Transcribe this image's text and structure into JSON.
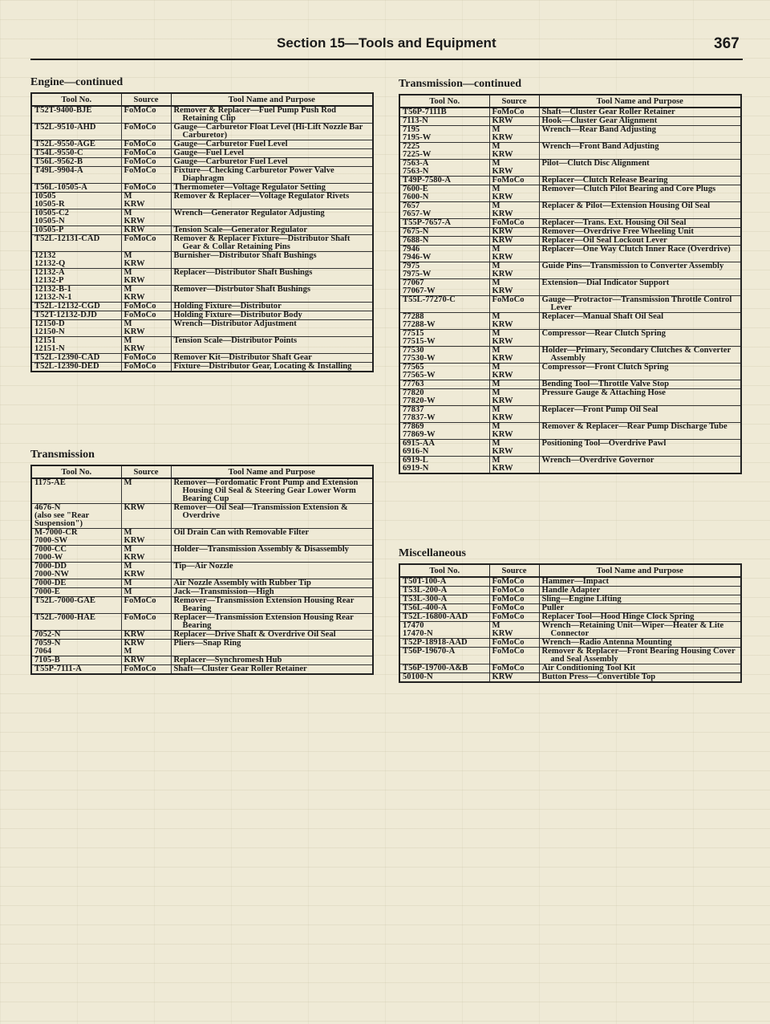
{
  "header": {
    "title": "Section 15—Tools and Equipment",
    "page": "367"
  },
  "columns": {
    "tool": "Tool No.",
    "source": "Source",
    "purpose": "Tool Name and Purpose"
  },
  "sections": [
    {
      "title": "Engine—continued",
      "rows": [
        [
          "T52T-9400-BJE",
          "FoMoCo",
          "Remover & Replacer—Fuel Pump Push Rod Retaining Clip"
        ],
        [
          "T52L-9510-AHD",
          "FoMoCo",
          "Gauge—Carburetor Float Level (Hi-Lift Nozzle Bar Carburetor)"
        ],
        [
          "T52L-9550-AGE",
          "FoMoCo",
          "Gauge—Carburetor Fuel Level"
        ],
        [
          "T54L-9550-C",
          "FoMoCo",
          "Gauge—Fuel Level"
        ],
        [
          "T56L-9562-B",
          "FoMoCo",
          "Gauge—Carburetor Fuel Level"
        ],
        [
          "T49L-9904-A",
          "FoMoCo",
          "Fixture—Checking Carburetor Power Valve Diaphragm"
        ],
        [
          "T56L-10505-A",
          "FoMoCo",
          "Thermometer—Voltage Regulator Setting"
        ],
        [
          "10505\n10505-R",
          "M\nKRW",
          "Remover & Replacer—Voltage Regulator Rivets"
        ],
        [
          "10505-C2\n10505-N",
          "M\nKRW",
          "Wrench—Generator Regulator Adjusting"
        ],
        [
          "10505-P",
          "KRW",
          "Tension Scale—Generator Regulator"
        ],
        [
          "T52L-12131-CAD",
          "FoMoCo",
          "Remover & Replacer Fixture—Distributor Shaft Gear & Collar Retaining Pins"
        ],
        [
          "12132\n12132-Q",
          "M\nKRW",
          "Burnisher—Distributor Shaft Bushings"
        ],
        [
          "12132-A\n12132-P",
          "M\nKRW",
          "Replacer—Distributor Shaft Bushings"
        ],
        [
          "12132-B-1\n12132-N-1",
          "M\nKRW",
          "Remover—Distrbutor Shaft Bushings"
        ],
        [
          "T52L-12132-CGD",
          "FoMoCo",
          "Holding Fixture—Distributor"
        ],
        [
          "T52T-12132-DJD",
          "FoMoCo",
          "Holding Fixture—Distributor Body"
        ],
        [
          "12150-D\n12150-N",
          "M\nKRW",
          "Wrench—Distributor Adjustment"
        ],
        [
          "12151\n12151-N",
          "M\nKRW",
          "Tension Scale—Distributor Points"
        ],
        [
          "T52L-12390-CAD",
          "FoMoCo",
          "Remover Kit—Distributor Shaft Gear"
        ],
        [
          "T52L-12390-DED",
          "FoMoCo",
          "Fixture—Distributor Gear, Locating & Installing"
        ]
      ]
    },
    {
      "title": "Transmission",
      "rows": [
        [
          "1175-AE",
          "M",
          "Remover—Fordomatic Front Pump and Extension Housing Oil Seal & Steering Gear Lower Worm Bearing Cup"
        ],
        [
          "4676-N\n(also see \"Rear Suspension\")",
          "KRW",
          "Remover—Oil Seal—Transmission Extension & Overdrive"
        ],
        [
          "M-7000-CR\n7000-SW",
          "M\nKRW",
          "Oil Drain Can with Removable Filter"
        ],
        [
          "7000-CC\n7000-W",
          "M\nKRW",
          "Holder—Transmission Assembly & Disassembly"
        ],
        [
          "7000-DD\n7000-NW",
          "M\nKRW",
          "Tip—Air Nozzle"
        ],
        [
          "7000-DE",
          "M",
          "Air Nozzle Assembly with Rubber Tip"
        ],
        [
          "7000-E",
          "M",
          "Jack—Transmission—High"
        ],
        [
          "T52L-7000-GAE",
          "FoMoCo",
          "Remover—Transmission Extension Housing Rear Bearing"
        ],
        [
          "T52L-7000-HAE",
          "FoMoCo",
          "Replacer—Transmission Extension Housing Rear Bearing"
        ],
        [
          "7052-N",
          "KRW",
          "Replacer—Drive Shaft & Overdrive Oil Seal"
        ],
        [
          "7059-N\n7064",
          "KRW\nM",
          "Pliers—Snap Ring"
        ],
        [
          "7105-B",
          "KRW",
          "Replacer—Synchromesh Hub"
        ],
        [
          "T55P-7111-A",
          "FoMoCo",
          "Shaft—Cluster Gear Roller Retainer"
        ]
      ]
    },
    {
      "title": "Transmission—continued",
      "rows": [
        [
          "T56P-7111B",
          "FoMoCo",
          "Shaft—Cluster Gear Roller Retainer"
        ],
        [
          "7113-N",
          "KRW",
          "Hook—Cluster Gear Alignment"
        ],
        [
          "7195\n7195-W",
          "M\nKRW",
          "Wrench—Rear Band Adjusting"
        ],
        [
          "7225\n7225-W",
          "M\nKRW",
          "Wrench—Front Band Adjusting"
        ],
        [
          "7563-A\n7563-N",
          "M\nKRW",
          "Pilot—Clutch Disc Alignment"
        ],
        [
          "T49P-7580-A",
          "FoMoCo",
          "Replacer—Clutch Release Bearing"
        ],
        [
          "7600-E\n7600-N",
          "M\nKRW",
          "Remover—Clutch Pilot Bearing and Core Plugs"
        ],
        [
          "7657\n7657-W",
          "M\nKRW",
          "Replacer & Pilot—Extension Housing Oil Seal"
        ],
        [
          "T55P-7657-A",
          "FoMoCo",
          "Replacer—Trans. Ext. Housing Oil Seal"
        ],
        [
          "7675-N",
          "KRW",
          "Remover—Overdrive Free Wheeling Unit"
        ],
        [
          "7688-N",
          "KRW",
          "Replacer—Oil Seal Lockout Lever"
        ],
        [
          "7946\n7946-W",
          "M\nKRW",
          "Replacer—One Way Clutch Inner Race (Overdrive)"
        ],
        [
          "7975\n7975-W",
          "M\nKRW",
          "Guide Pins—Transmission to Converter Assembly"
        ],
        [
          "77067\n77067-W",
          "M\nKRW",
          "Extension—Dial Indicator Support"
        ],
        [
          "T55L-77270-C",
          "FoMoCo",
          "Gauge—Protractor—Transmission Throttle Control Lever"
        ],
        [
          "77288\n77288-W",
          "M\nKRW",
          "Replacer—Manual Shaft Oil Seal"
        ],
        [
          "77515\n77515-W",
          "M\nKRW",
          "Compressor—Rear Clutch Spring"
        ],
        [
          "77530\n77530-W",
          "M\nKRW",
          "Holder—Primary, Secondary Clutches & Converter Assembly"
        ],
        [
          "77565\n77565-W",
          "M\nKRW",
          "Compressor—Front Clutch Spring"
        ],
        [
          "77763",
          "M",
          "Bending Tool—Throttle Valve Stop"
        ],
        [
          "77820\n77820-W",
          "M\nKRW",
          "Pressure Gauge & Attaching Hose"
        ],
        [
          "77837\n77837-W",
          "M\nKRW",
          "Replacer—Front Pump Oil Seal"
        ],
        [
          "77869\n77869-W",
          "M\nKRW",
          "Remover & Replacer—Rear Pump Discharge Tube"
        ],
        [
          "6915-AA\n6916-N",
          "M\nKRW",
          "Positioning Tool—Overdrive Pawl"
        ],
        [
          "6919-L\n6919-N",
          "M\nKRW",
          "Wrench—Overdrive Governor"
        ]
      ]
    },
    {
      "title": "Miscellaneous",
      "rows": [
        [
          "T50T-100-A",
          "FoMoCo",
          "Hammer—Impact"
        ],
        [
          "T53L-200-A",
          "FoMoCo",
          "Handle Adapter"
        ],
        [
          "T53L-300-A",
          "FoMoCo",
          "Sling—Engine Lifting"
        ],
        [
          "T56L-400-A",
          "FoMoCo",
          "Puller"
        ],
        [
          "T52L-16800-AAD",
          "FoMoCo",
          "Replacer Tool—Hood Hinge Clock Spring"
        ],
        [
          "17470\n17470-N",
          "M\nKRW",
          "Wrench—Retaining Unit—Wiper—Heater & Lite Connector"
        ],
        [
          "T52P-18918-AAD",
          "FoMoCo",
          "Wrench—Radio Antenna Mounting"
        ],
        [
          "T56P-19670-A",
          "FoMoCo",
          "Remover & Replacer—Front Bearing Housing Cover and Seal Assembly"
        ],
        [
          "T56P-19700-A&B",
          "FoMoCo",
          "Air Conditioning Tool Kit"
        ],
        [
          "50100-N",
          "KRW",
          "Button Press—Convertible Top"
        ]
      ]
    }
  ]
}
